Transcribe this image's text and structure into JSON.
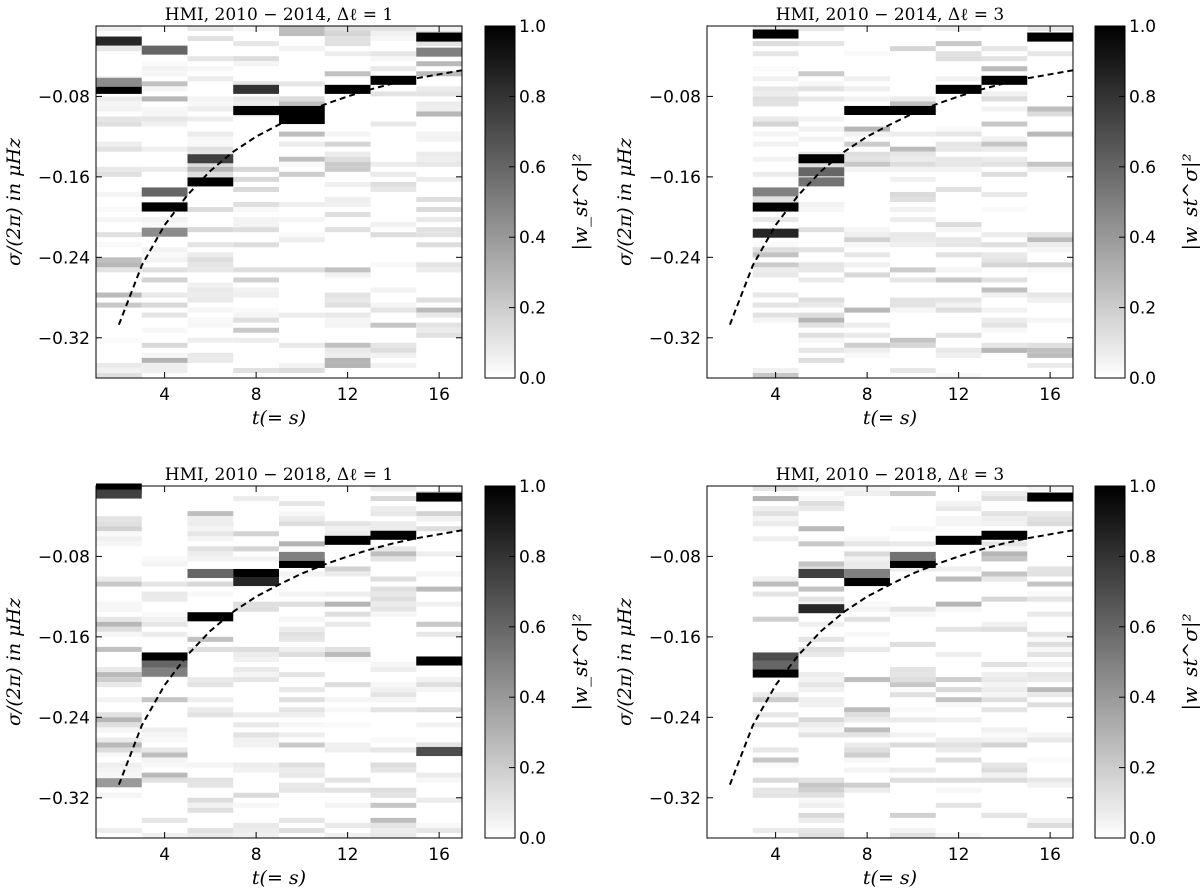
{
  "colors": {
    "cmap_low": "#ffffff",
    "cmap_high": "#000000",
    "frame": "#000000",
    "curve": "#000000"
  },
  "chart_data": [
    {
      "type": "heatmap",
      "title": "HMI, 2010 − 2014, Δℓ = 1",
      "xlabel": "t(= s)",
      "ylabel": "σ/(2π) in μHz",
      "colorbar_label": "|w_st^σ|²",
      "xlim": [
        1,
        17
      ],
      "ylim": [
        -0.36,
        -0.01
      ],
      "xticks": [
        4,
        8,
        12,
        16
      ],
      "xtick_labels": [
        "4",
        "8",
        "12",
        "16"
      ],
      "yticks": [
        -0.08,
        -0.16,
        -0.24,
        -0.32
      ],
      "ytick_labels": [
        "−0.08",
        "−0.16",
        "−0.24",
        "−0.32"
      ],
      "colorbar_ticks": [
        0.0,
        0.2,
        0.4,
        0.6,
        0.8,
        1.0
      ],
      "colorbar_tick_labels": [
        "0.0",
        "0.2",
        "0.4",
        "0.6",
        "0.8",
        "1.0"
      ],
      "columns": [
        2,
        4,
        6,
        8,
        10,
        12,
        14,
        16
      ],
      "peaks": [
        {
          "t": 2,
          "sigma": -0.073,
          "w": 1.0
        },
        {
          "t": 2,
          "sigma": -0.025,
          "w": 0.85
        },
        {
          "t": 2,
          "sigma": -0.066,
          "w": 0.45
        },
        {
          "t": 4,
          "sigma": -0.19,
          "w": 1.0
        },
        {
          "t": 4,
          "sigma": -0.175,
          "w": 0.6
        },
        {
          "t": 4,
          "sigma": -0.215,
          "w": 0.45
        },
        {
          "t": 4,
          "sigma": -0.034,
          "w": 0.6
        },
        {
          "t": 6,
          "sigma": -0.165,
          "w": 1.0
        },
        {
          "t": 6,
          "sigma": -0.142,
          "w": 0.75
        },
        {
          "t": 8,
          "sigma": -0.073,
          "w": 0.8
        },
        {
          "t": 8,
          "sigma": -0.094,
          "w": 1.0
        },
        {
          "t": 10,
          "sigma": -0.094,
          "w": 1.0
        },
        {
          "t": 10,
          "sigma": -0.103,
          "w": 1.0
        },
        {
          "t": 12,
          "sigma": -0.073,
          "w": 1.0
        },
        {
          "t": 14,
          "sigma": -0.064,
          "w": 1.0
        },
        {
          "t": 16,
          "sigma": -0.021,
          "w": 1.0
        },
        {
          "t": 16,
          "sigma": -0.036,
          "w": 0.5
        }
      ],
      "curve": {
        "t": [
          2,
          3,
          4,
          5,
          6,
          7,
          8,
          9,
          10,
          11,
          12,
          13,
          14,
          15,
          16,
          17
        ],
        "sigma": [
          -0.307,
          -0.248,
          -0.208,
          -0.178,
          -0.154,
          -0.135,
          -0.12,
          -0.108,
          -0.097,
          -0.088,
          -0.08,
          -0.073,
          -0.067,
          -0.062,
          -0.058,
          -0.054
        ]
      }
    },
    {
      "type": "heatmap",
      "title": "HMI, 2010 − 2014, Δℓ = 3",
      "xlabel": "t(= s)",
      "ylabel": "σ/(2π) in μHz",
      "colorbar_label": "|w_st^σ|²",
      "xlim": [
        1,
        17
      ],
      "ylim": [
        -0.36,
        -0.01
      ],
      "xticks": [
        4,
        8,
        12,
        16
      ],
      "xtick_labels": [
        "4",
        "8",
        "12",
        "16"
      ],
      "yticks": [
        -0.08,
        -0.16,
        -0.24,
        -0.32
      ],
      "ytick_labels": [
        "−0.08",
        "−0.16",
        "−0.24",
        "−0.32"
      ],
      "colorbar_ticks": [
        0.0,
        0.2,
        0.4,
        0.6,
        0.8,
        1.0
      ],
      "colorbar_tick_labels": [
        "0.0",
        "0.2",
        "0.4",
        "0.6",
        "0.8",
        "1.0"
      ],
      "columns": [
        4,
        6,
        8,
        10,
        12,
        14,
        16
      ],
      "peaks": [
        {
          "t": 4,
          "sigma": -0.19,
          "w": 1.0
        },
        {
          "t": 4,
          "sigma": -0.216,
          "w": 0.85
        },
        {
          "t": 4,
          "sigma": -0.018,
          "w": 1.0
        },
        {
          "t": 4,
          "sigma": -0.175,
          "w": 0.5
        },
        {
          "t": 6,
          "sigma": -0.142,
          "w": 1.0
        },
        {
          "t": 6,
          "sigma": -0.155,
          "w": 0.6
        },
        {
          "t": 6,
          "sigma": -0.165,
          "w": 0.55
        },
        {
          "t": 8,
          "sigma": -0.094,
          "w": 1.0
        },
        {
          "t": 10,
          "sigma": -0.094,
          "w": 1.0
        },
        {
          "t": 12,
          "sigma": -0.073,
          "w": 1.0
        },
        {
          "t": 14,
          "sigma": -0.064,
          "w": 1.0
        },
        {
          "t": 16,
          "sigma": -0.021,
          "w": 1.0
        }
      ],
      "curve": {
        "t": [
          2,
          3,
          4,
          5,
          6,
          7,
          8,
          9,
          10,
          11,
          12,
          13,
          14,
          15,
          16,
          17
        ],
        "sigma": [
          -0.307,
          -0.248,
          -0.208,
          -0.178,
          -0.154,
          -0.135,
          -0.12,
          -0.108,
          -0.097,
          -0.088,
          -0.08,
          -0.073,
          -0.067,
          -0.062,
          -0.058,
          -0.054
        ]
      }
    },
    {
      "type": "heatmap",
      "title": "HMI, 2010 − 2018, Δℓ = 1",
      "xlabel": "t(= s)",
      "ylabel": "σ/(2π) in μHz",
      "colorbar_label": "|w_st^σ|²",
      "xlim": [
        1,
        17
      ],
      "ylim": [
        -0.36,
        -0.01
      ],
      "xticks": [
        4,
        8,
        12,
        16
      ],
      "xtick_labels": [
        "4",
        "8",
        "12",
        "16"
      ],
      "yticks": [
        -0.08,
        -0.16,
        -0.24,
        -0.32
      ],
      "ytick_labels": [
        "−0.08",
        "−0.16",
        "−0.24",
        "−0.32"
      ],
      "colorbar_ticks": [
        0.0,
        0.2,
        0.4,
        0.6,
        0.8,
        1.0
      ],
      "colorbar_tick_labels": [
        "0.0",
        "0.2",
        "0.4",
        "0.6",
        "0.8",
        "1.0"
      ],
      "columns": [
        2,
        4,
        6,
        8,
        10,
        12,
        14,
        16
      ],
      "peaks": [
        {
          "t": 2,
          "sigma": -0.012,
          "w": 1.0
        },
        {
          "t": 2,
          "sigma": -0.018,
          "w": 0.75
        },
        {
          "t": 2,
          "sigma": -0.305,
          "w": 0.4
        },
        {
          "t": 4,
          "sigma": -0.18,
          "w": 1.0
        },
        {
          "t": 4,
          "sigma": -0.188,
          "w": 0.6
        },
        {
          "t": 4,
          "sigma": -0.195,
          "w": 0.5
        },
        {
          "t": 6,
          "sigma": -0.14,
          "w": 1.0
        },
        {
          "t": 6,
          "sigma": -0.097,
          "w": 0.6
        },
        {
          "t": 8,
          "sigma": -0.097,
          "w": 1.0
        },
        {
          "t": 8,
          "sigma": -0.105,
          "w": 0.85
        },
        {
          "t": 10,
          "sigma": -0.087,
          "w": 1.0
        },
        {
          "t": 10,
          "sigma": -0.08,
          "w": 0.5
        },
        {
          "t": 12,
          "sigma": -0.064,
          "w": 1.0
        },
        {
          "t": 14,
          "sigma": -0.059,
          "w": 1.0
        },
        {
          "t": 16,
          "sigma": -0.021,
          "w": 1.0
        },
        {
          "t": 16,
          "sigma": -0.184,
          "w": 1.0
        },
        {
          "t": 16,
          "sigma": -0.274,
          "w": 0.7
        }
      ],
      "curve": {
        "t": [
          2,
          3,
          4,
          5,
          6,
          7,
          8,
          9,
          10,
          11,
          12,
          13,
          14,
          15,
          16,
          17
        ],
        "sigma": [
          -0.307,
          -0.248,
          -0.208,
          -0.178,
          -0.154,
          -0.135,
          -0.12,
          -0.108,
          -0.097,
          -0.088,
          -0.08,
          -0.073,
          -0.067,
          -0.062,
          -0.058,
          -0.054
        ]
      }
    },
    {
      "type": "heatmap",
      "title": "HMI, 2010 − 2018, Δℓ = 3",
      "xlabel": "t(= s)",
      "ylabel": "σ/(2π) in μHz",
      "colorbar_label": "|w_st^σ|²",
      "xlim": [
        1,
        17
      ],
      "ylim": [
        -0.36,
        -0.01
      ],
      "xticks": [
        4,
        8,
        12,
        16
      ],
      "xtick_labels": [
        "4",
        "8",
        "12",
        "16"
      ],
      "yticks": [
        -0.08,
        -0.16,
        -0.24,
        -0.32
      ],
      "ytick_labels": [
        "−0.08",
        "−0.16",
        "−0.24",
        "−0.32"
      ],
      "colorbar_ticks": [
        0.0,
        0.2,
        0.4,
        0.6,
        0.8,
        1.0
      ],
      "colorbar_tick_labels": [
        "0.0",
        "0.2",
        "0.4",
        "0.6",
        "0.8",
        "1.0"
      ],
      "columns": [
        4,
        6,
        8,
        10,
        12,
        14,
        16
      ],
      "peaks": [
        {
          "t": 4,
          "sigma": -0.196,
          "w": 1.0
        },
        {
          "t": 4,
          "sigma": -0.18,
          "w": 0.7
        },
        {
          "t": 4,
          "sigma": -0.188,
          "w": 0.6
        },
        {
          "t": 6,
          "sigma": -0.132,
          "w": 0.85
        },
        {
          "t": 6,
          "sigma": -0.097,
          "w": 0.75
        },
        {
          "t": 8,
          "sigma": -0.105,
          "w": 1.0
        },
        {
          "t": 8,
          "sigma": -0.097,
          "w": 0.5
        },
        {
          "t": 10,
          "sigma": -0.087,
          "w": 1.0
        },
        {
          "t": 10,
          "sigma": -0.08,
          "w": 0.55
        },
        {
          "t": 12,
          "sigma": -0.064,
          "w": 1.0
        },
        {
          "t": 14,
          "sigma": -0.059,
          "w": 1.0
        },
        {
          "t": 16,
          "sigma": -0.021,
          "w": 1.0
        }
      ],
      "curve": {
        "t": [
          2,
          3,
          4,
          5,
          6,
          7,
          8,
          9,
          10,
          11,
          12,
          13,
          14,
          15,
          16,
          17
        ],
        "sigma": [
          -0.307,
          -0.248,
          -0.208,
          -0.178,
          -0.154,
          -0.135,
          -0.12,
          -0.108,
          -0.097,
          -0.088,
          -0.08,
          -0.073,
          -0.067,
          -0.062,
          -0.058,
          -0.054
        ]
      }
    }
  ]
}
